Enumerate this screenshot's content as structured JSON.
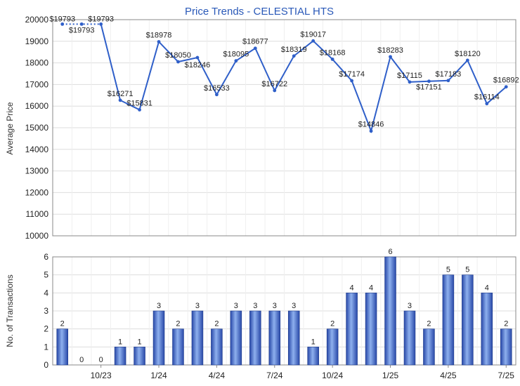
{
  "chart_data": [
    {
      "type": "line",
      "title": "Price Trends - CELESTIAL HTS",
      "ylabel": "Average Price",
      "ylim": [
        10000,
        20000
      ],
      "yticks": [
        10000,
        11000,
        12000,
        13000,
        14000,
        15000,
        16000,
        17000,
        18000,
        19000,
        20000
      ],
      "grid": true,
      "series": [
        {
          "values": [
            19793,
            19793,
            19793,
            16271,
            15831,
            18978,
            18050,
            18246,
            16533,
            18095,
            18677,
            16722,
            18319,
            19017,
            18168,
            17174,
            14846,
            18283,
            17115,
            17151,
            17183,
            18120,
            16114,
            16892
          ],
          "labels": [
            "$19793",
            "$19793",
            "$19793",
            "$16271",
            "$15831",
            "$18978",
            "$18050",
            "$18246",
            "$16533",
            "$18095",
            "$18677",
            "$16722",
            "$18319",
            "$19017",
            "$18168",
            "$17174",
            "$14846",
            "$18283",
            "$17115",
            "$17151",
            "$17183",
            "$18120",
            "$16114",
            "$16892"
          ]
        }
      ],
      "colors": {
        "line": "#2f5fc9",
        "grid": "#dddddd",
        "plot_border": "#888888"
      }
    },
    {
      "type": "bar",
      "ylabel": "No. of Transactions",
      "ylim": [
        0,
        6
      ],
      "yticks": [
        0,
        1,
        2,
        3,
        4,
        5,
        6
      ],
      "x_tick_labels": [
        {
          "index": 2,
          "label": "10/23"
        },
        {
          "index": 5,
          "label": "1/24"
        },
        {
          "index": 8,
          "label": "4/24"
        },
        {
          "index": 11,
          "label": "7/24"
        },
        {
          "index": 14,
          "label": "10/24"
        },
        {
          "index": 17,
          "label": "1/25"
        },
        {
          "index": 20,
          "label": "4/25"
        },
        {
          "index": 23,
          "label": "7/25"
        }
      ],
      "values": [
        2,
        0,
        0,
        1,
        1,
        3,
        2,
        3,
        2,
        3,
        3,
        3,
        3,
        1,
        2,
        4,
        4,
        6,
        3,
        2,
        5,
        5,
        4,
        2
      ],
      "grid": true,
      "colors": {
        "bar_dark": "#2848a8",
        "bar_light": "#8eb0ee",
        "grid": "#dddddd",
        "plot_border": "#888888"
      }
    }
  ]
}
